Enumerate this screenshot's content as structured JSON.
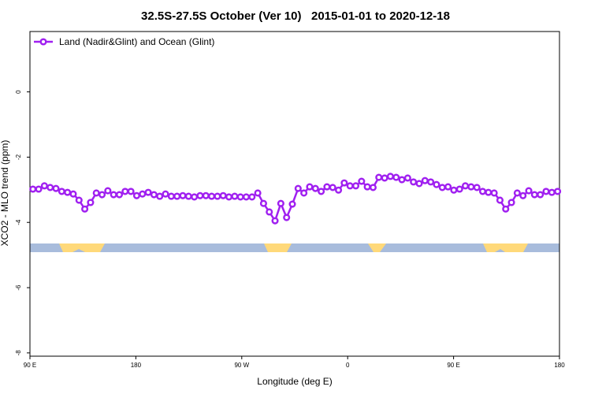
{
  "chart_data": {
    "type": "line",
    "title": "32.5S-27.5S October (Ver 10)   2015-01-01 to 2020-12-18",
    "x_label": "Longitude (deg E)",
    "y_label": "XCO2 - MLO trend (ppm)",
    "x": [
      92.5,
      97.4,
      102.3,
      107.2,
      112.1,
      117,
      121.9,
      126.8,
      131.7,
      136.6,
      141.5,
      146.4,
      151.3,
      156.2,
      161.1,
      166,
      170.9,
      175.8,
      180.7,
      185.6,
      190.5,
      195.4,
      200.3,
      205.2,
      210.1,
      215,
      219.9,
      224.8,
      229.7,
      234.6,
      239.5,
      244.4,
      249.3,
      254.2,
      259.1,
      264,
      268.9,
      273.8,
      278.7,
      283.6,
      288.5,
      293.4,
      298.3,
      303.2,
      308.1,
      313,
      317.9,
      322.8,
      327.7,
      332.6,
      337.5,
      342.4,
      347.3,
      352.2,
      357.1,
      362,
      366.9,
      371.8,
      376.7,
      381.6,
      386.5,
      391.4,
      396.3,
      401.2,
      406.1,
      411,
      415.9,
      420.8,
      425.7,
      430.6,
      435.5,
      440.4,
      445.3,
      450.2,
      455.1,
      460,
      464.9,
      469.8,
      474.7,
      479.6,
      484.5,
      489.4,
      494.3,
      499.2,
      504.1,
      509,
      513.9,
      518.8,
      523.7,
      528.6,
      533.5,
      538.4
    ],
    "series": [
      {
        "name": "Land (Nadir&Glint) and Ocean (Glint)",
        "color": "#a020f0",
        "values": [
          -2.98,
          -2.98,
          -2.88,
          -2.93,
          -2.96,
          -3.05,
          -3.08,
          -3.13,
          -3.32,
          -3.59,
          -3.39,
          -3.1,
          -3.15,
          -3.03,
          -3.15,
          -3.15,
          -3.05,
          -3.05,
          -3.18,
          -3.13,
          -3.08,
          -3.15,
          -3.2,
          -3.13,
          -3.2,
          -3.2,
          -3.18,
          -3.2,
          -3.22,
          -3.18,
          -3.18,
          -3.2,
          -3.2,
          -3.18,
          -3.22,
          -3.2,
          -3.22,
          -3.22,
          -3.22,
          -3.1,
          -3.42,
          -3.68,
          -3.95,
          -3.42,
          -3.85,
          -3.44,
          -2.96,
          -3.1,
          -2.91,
          -2.96,
          -3.05,
          -2.91,
          -2.93,
          -3.01,
          -2.79,
          -2.88,
          -2.88,
          -2.74,
          -2.91,
          -2.93,
          -2.62,
          -2.64,
          -2.59,
          -2.62,
          -2.69,
          -2.64,
          -2.76,
          -2.81,
          -2.72,
          -2.76,
          -2.84,
          -2.93,
          -2.91,
          -3.01,
          -2.98,
          -2.88,
          -2.91,
          -2.93,
          -3.05,
          -3.08,
          -3.1,
          -3.32,
          -3.59,
          -3.39,
          -3.1,
          -3.18,
          -3.03,
          -3.15,
          -3.15,
          -3.05,
          -3.08,
          -3.05
        ]
      }
    ],
    "xlim": [
      90,
      540
    ],
    "ylim": [
      -8.1,
      1.85
    ],
    "xticks": [
      {
        "value": 90,
        "label": "90 E"
      },
      180,
      {
        "value": 270,
        "label": "90 W"
      },
      {
        "value": 360,
        "label": "0"
      },
      {
        "value": 450,
        "label": "90 E"
      },
      {
        "value": 540,
        "label": "180"
      }
    ],
    "yticks": [
      0,
      -2,
      -4,
      -6,
      -8
    ],
    "legend": "top-left"
  }
}
